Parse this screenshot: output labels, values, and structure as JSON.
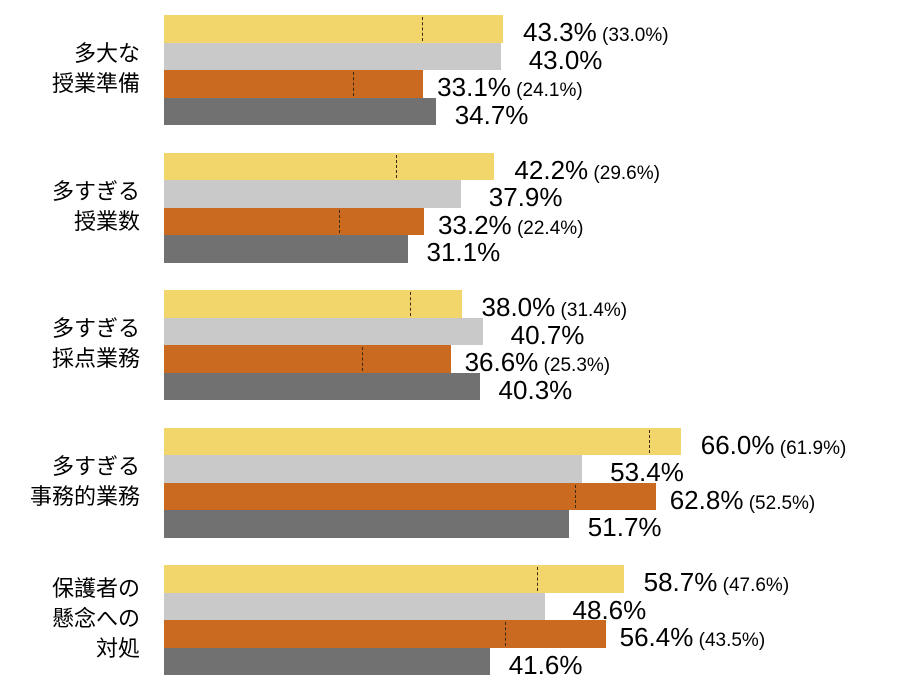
{
  "chart_data": {
    "type": "bar",
    "orientation": "horizontal",
    "categories": [
      "多大な\n授業準備",
      "多すぎる\n授業数",
      "多すぎる\n採点業務",
      "多すぎる\n事務的業務",
      "保護者の\n懸念への\n対処"
    ],
    "series": [
      {
        "color": "#F2D56B",
        "values": [
          43.3,
          42.2,
          38.0,
          66.0,
          58.7
        ],
        "secondary": [
          33.0,
          29.6,
          31.4,
          61.9,
          47.6
        ]
      },
      {
        "color": "#C9C9C9",
        "values": [
          43.0,
          37.9,
          40.7,
          53.4,
          48.6
        ]
      },
      {
        "color": "#C96A20",
        "values": [
          33.1,
          33.2,
          36.6,
          62.8,
          56.4
        ],
        "secondary": [
          24.1,
          22.4,
          25.3,
          52.5,
          43.5
        ]
      },
      {
        "color": "#717171",
        "values": [
          34.7,
          31.1,
          40.3,
          51.7,
          41.6
        ]
      }
    ],
    "value_format": "percent",
    "grid": false,
    "legend": "none"
  }
}
